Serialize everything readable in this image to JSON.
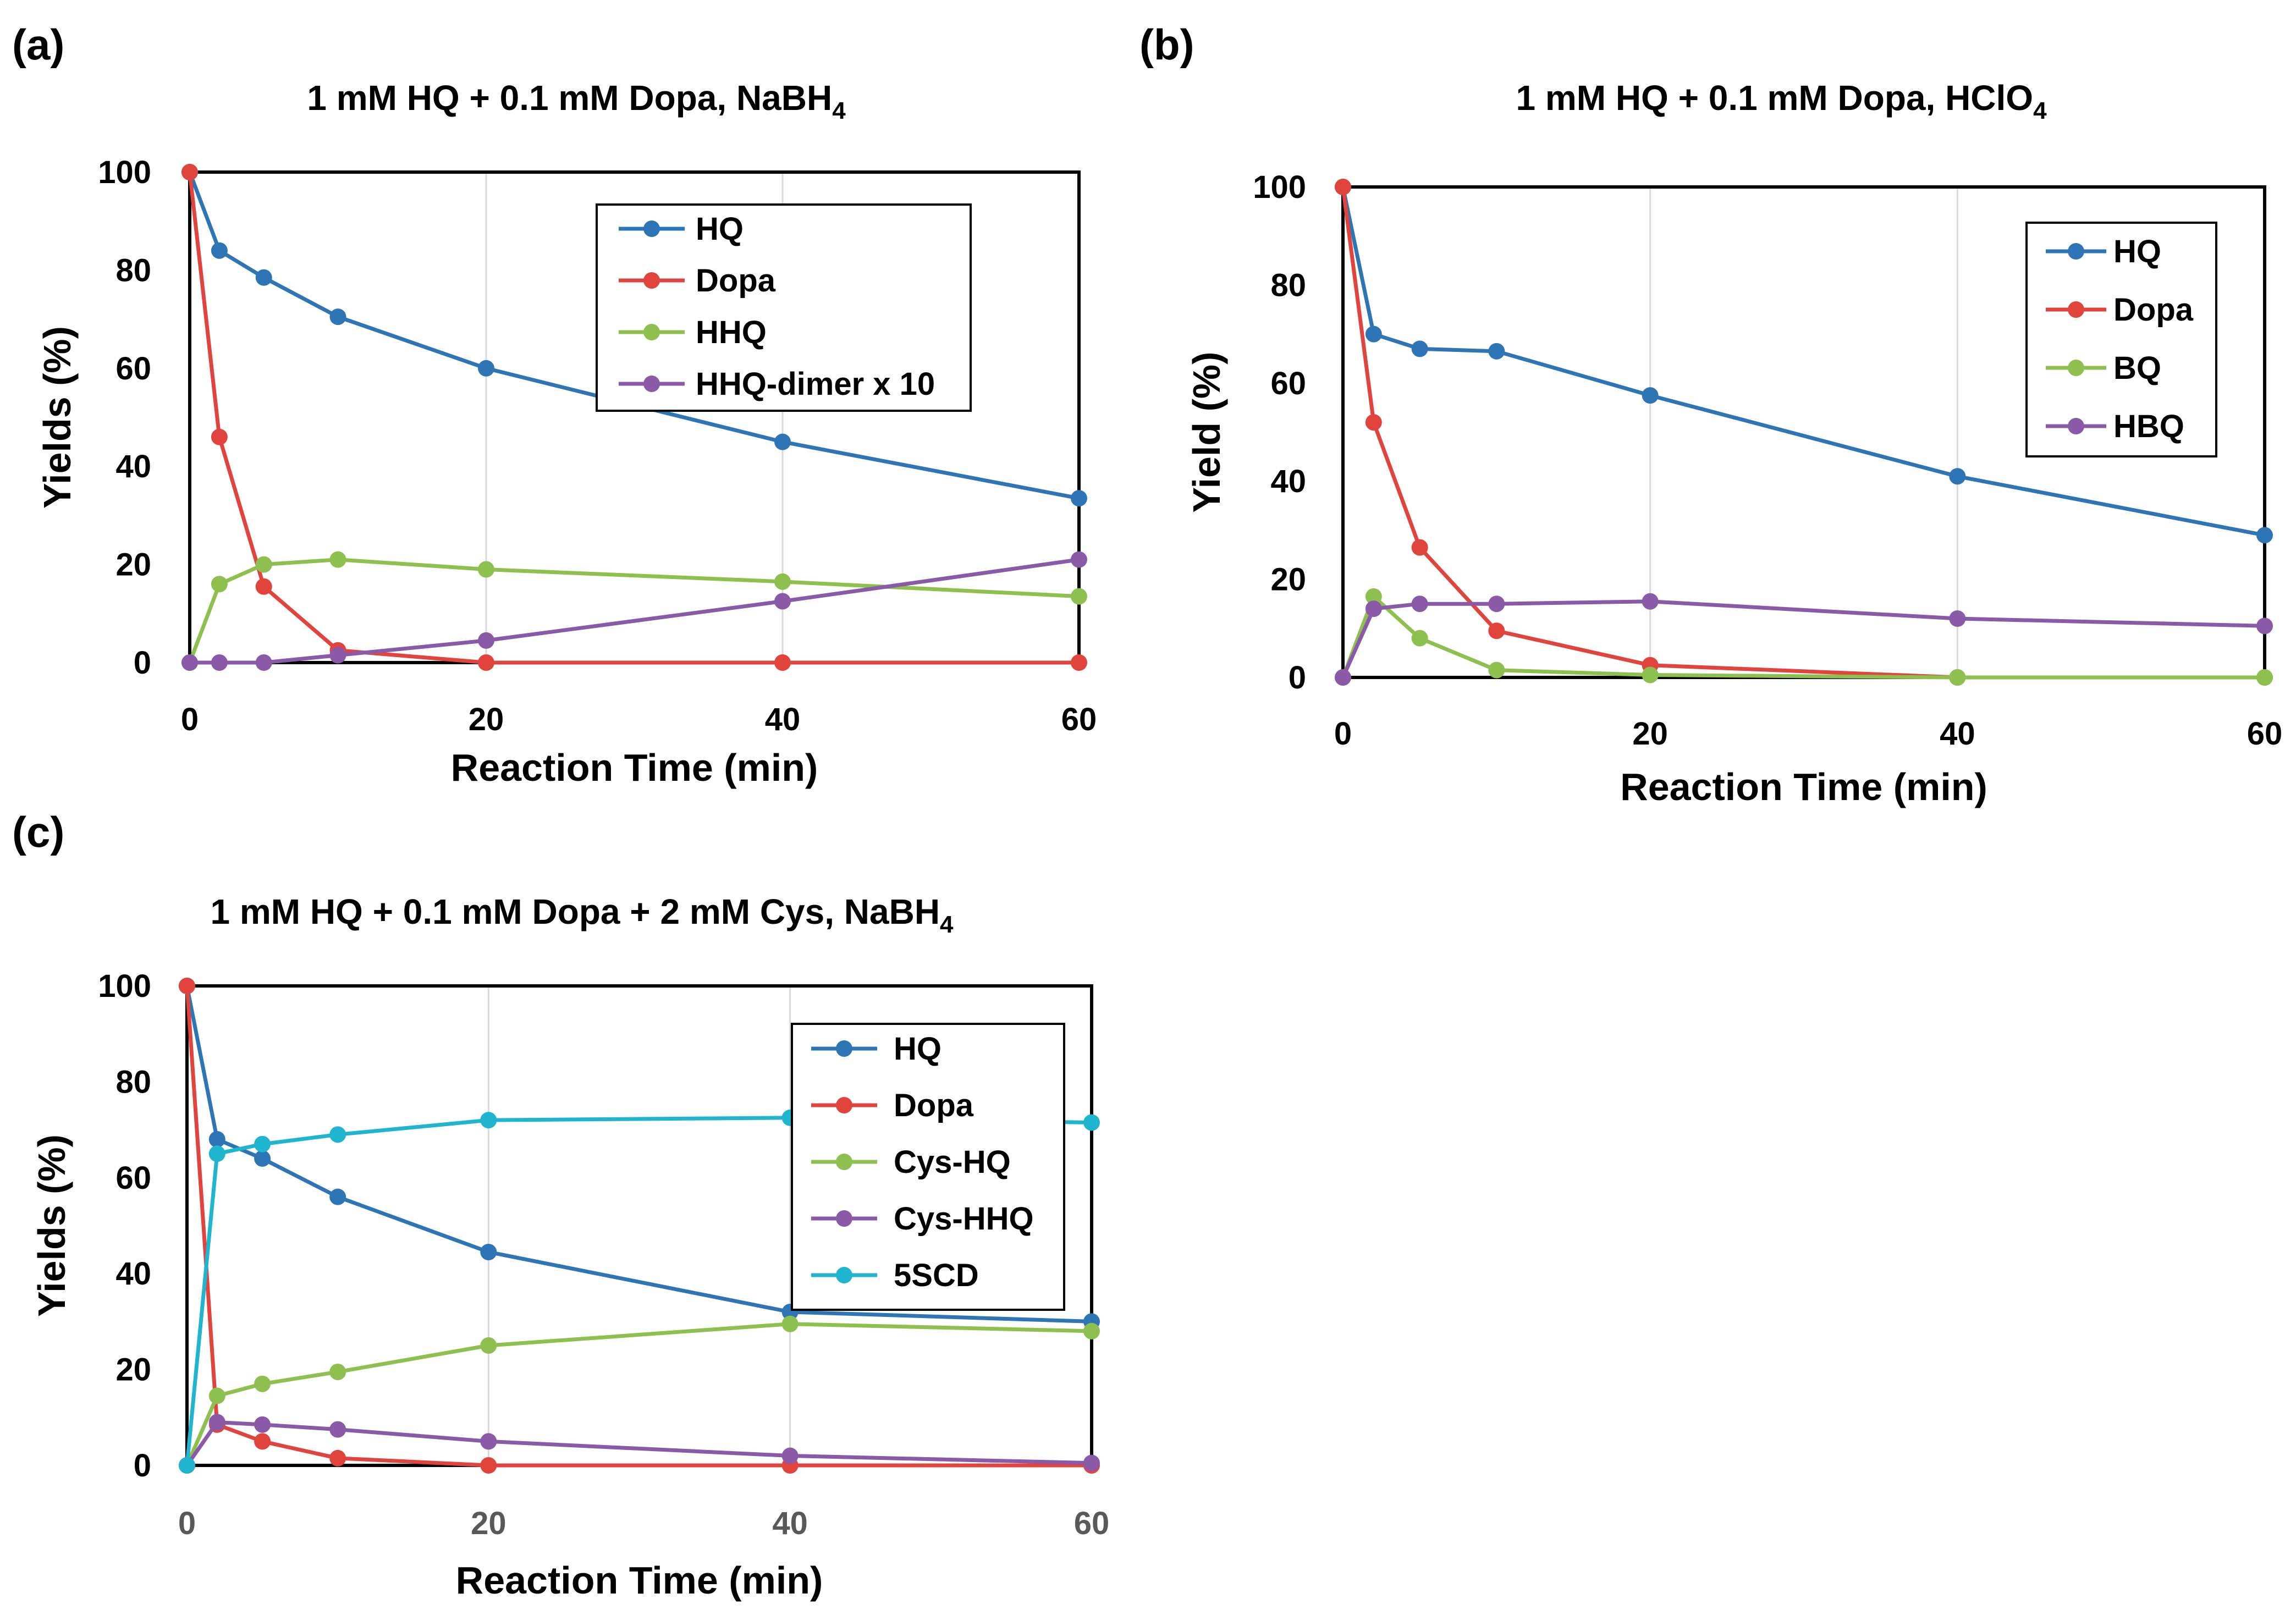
{
  "chart_data": [
    {
      "panel": "(a)",
      "type": "line",
      "title": "1 mM HQ + 0.1 mM Dopa, NaBH",
      "title_sub": "4",
      "xlabel": "Reaction Time (min)",
      "ylabel": "Yields (%)",
      "xlim": [
        0,
        60
      ],
      "ylim": [
        0,
        100
      ],
      "x_ticks": [
        "0",
        "20",
        "40",
        "60"
      ],
      "y_ticks": [
        "0",
        "20",
        "40",
        "60",
        "80",
        "100"
      ],
      "grid": true,
      "legend_position": "top-right",
      "x": [
        0,
        2,
        5,
        10,
        20,
        40,
        60
      ],
      "series": [
        {
          "name": "HQ",
          "color": "#2e75b6",
          "values": [
            100,
            84,
            78.5,
            70.5,
            60,
            45,
            33.5
          ]
        },
        {
          "name": "Dopa",
          "color": "#e0443c",
          "values": [
            100,
            46,
            15.5,
            2.5,
            0,
            0,
            0
          ]
        },
        {
          "name": "HHQ",
          "color": "#8dc04f",
          "values": [
            0,
            16,
            20,
            21,
            19,
            16.5,
            13.5
          ]
        },
        {
          "name": "HHQ-dimer x 10",
          "color": "#8a5aa8",
          "values": [
            0,
            0,
            0,
            1.5,
            4.5,
            12.5,
            21
          ]
        }
      ]
    },
    {
      "panel": "(b)",
      "type": "line",
      "title": "1 mM HQ + 0.1 mM Dopa, HClO",
      "title_sub": "4",
      "xlabel": "Reaction Time (min)",
      "ylabel": "Yield (%)",
      "xlim": [
        0,
        60
      ],
      "ylim": [
        0,
        100
      ],
      "x_ticks": [
        "0",
        "20",
        "40",
        "60"
      ],
      "y_ticks": [
        "0",
        "20",
        "40",
        "60",
        "80",
        "100"
      ],
      "grid": true,
      "legend_position": "top-right",
      "x": [
        0,
        2,
        5,
        10,
        20,
        40,
        60
      ],
      "series": [
        {
          "name": "HQ",
          "color": "#2e75b6",
          "values": [
            100,
            70,
            67,
            66.5,
            57.5,
            41,
            29
          ]
        },
        {
          "name": "Dopa",
          "color": "#e0443c",
          "values": [
            100,
            52,
            26.5,
            9.5,
            2.5,
            0,
            0
          ]
        },
        {
          "name": "BQ",
          "color": "#8dc04f",
          "values": [
            0,
            16.5,
            8,
            1.5,
            0.5,
            0,
            0
          ]
        },
        {
          "name": "HBQ",
          "color": "#8a5aa8",
          "values": [
            0,
            14,
            15,
            15,
            15.5,
            12,
            10.5
          ]
        }
      ]
    },
    {
      "panel": "(c)",
      "type": "line",
      "title": "1 mM HQ + 0.1 mM Dopa + 2 mM Cys, NaBH",
      "title_sub": "4",
      "xlabel": "Reaction Time (min)",
      "ylabel": "Yields (%)",
      "xlim": [
        0,
        60
      ],
      "ylim": [
        0,
        100
      ],
      "x_ticks": [
        "0",
        "20",
        "40",
        "60"
      ],
      "y_ticks": [
        "0",
        "20",
        "40",
        "60",
        "80",
        "100"
      ],
      "grid": true,
      "legend_position": "top-right",
      "x": [
        0,
        2,
        5,
        10,
        20,
        40,
        60
      ],
      "series": [
        {
          "name": "HQ",
          "color": "#2e75b6",
          "values": [
            100,
            68,
            64,
            56,
            44.5,
            32,
            30
          ]
        },
        {
          "name": "Dopa",
          "color": "#e0443c",
          "values": [
            100,
            8.5,
            5,
            1.5,
            0,
            0,
            0
          ]
        },
        {
          "name": "Cys-HQ",
          "color": "#8dc04f",
          "values": [
            0,
            14.5,
            17,
            19.5,
            25,
            29.5,
            28
          ]
        },
        {
          "name": "Cys-HHQ",
          "color": "#8a5aa8",
          "values": [
            0,
            9,
            8.5,
            7.5,
            5,
            2,
            0.5
          ]
        },
        {
          "name": "5SCD",
          "color": "#1fb5cf",
          "values": [
            0,
            65,
            67,
            69,
            72,
            72.5,
            71.5
          ]
        }
      ]
    }
  ]
}
